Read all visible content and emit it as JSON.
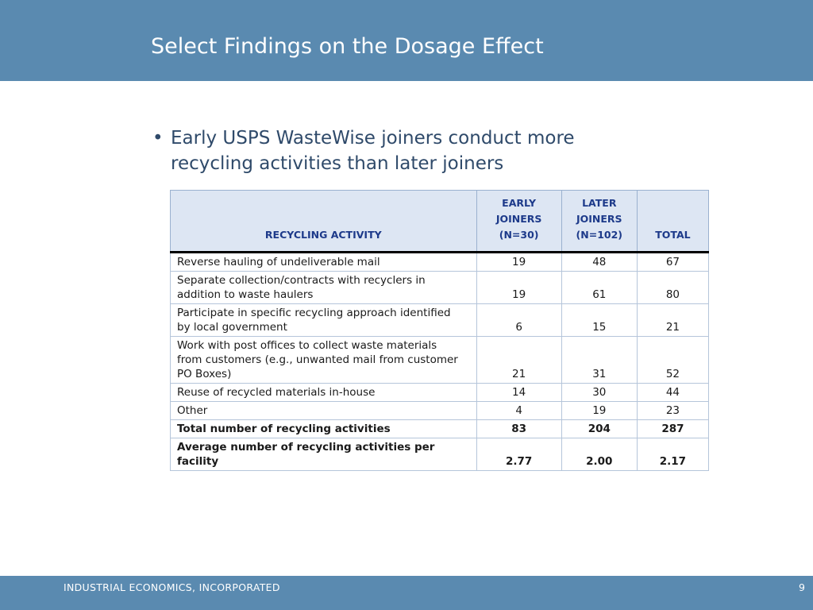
{
  "slide": {
    "title": "Select Findings on the Dosage Effect",
    "bullet": "Early USPS WasteWise joiners conduct more recycling activities than later joiners",
    "bullet_symbol": "•"
  },
  "table": {
    "headers": {
      "activity": "RECYCLING ACTIVITY",
      "early": [
        "EARLY",
        "JOINERS",
        "(N=30)"
      ],
      "later": [
        "LATER",
        "JOINERS",
        "(N=102)"
      ],
      "total": "TOTAL"
    },
    "rows": [
      {
        "activity": [
          "Reverse hauling of undeliverable mail"
        ],
        "early": "19",
        "later": "48",
        "total": "67",
        "bold": false
      },
      {
        "activity": [
          "Separate collection/contracts with recyclers in",
          "addition to waste haulers"
        ],
        "early": "19",
        "later": "61",
        "total": "80",
        "bold": false
      },
      {
        "activity": [
          "Participate in specific recycling approach identified",
          "by local government"
        ],
        "early": "6",
        "later": "15",
        "total": "21",
        "bold": false
      },
      {
        "activity": [
          "Work with post offices to collect waste materials",
          "from customers (e.g., unwanted mail from customer",
          "PO Boxes)"
        ],
        "early": "21",
        "later": "31",
        "total": "52",
        "bold": false
      },
      {
        "activity": [
          "Reuse of recycled materials in-house"
        ],
        "early": "14",
        "later": "30",
        "total": "44",
        "bold": false
      },
      {
        "activity": [
          "Other"
        ],
        "early": "4",
        "later": "19",
        "total": "23",
        "bold": false
      },
      {
        "activity": [
          "Total number of recycling activities"
        ],
        "early": "83",
        "later": "204",
        "total": "287",
        "bold": true
      },
      {
        "activity": [
          "Average number of recycling activities per facility"
        ],
        "early": "2.77",
        "later": "2.00",
        "total": "2.17",
        "bold": true
      }
    ]
  },
  "footer": {
    "company": "INDUSTRIAL ECONOMICS, INCORPORATED",
    "page_number": "9"
  },
  "colors": {
    "header_bar": "#5a8ab0",
    "bullet_text": "#2f4a6a",
    "table_header_bg": "#dde6f3",
    "table_header_text": "#1d3a8a"
  }
}
